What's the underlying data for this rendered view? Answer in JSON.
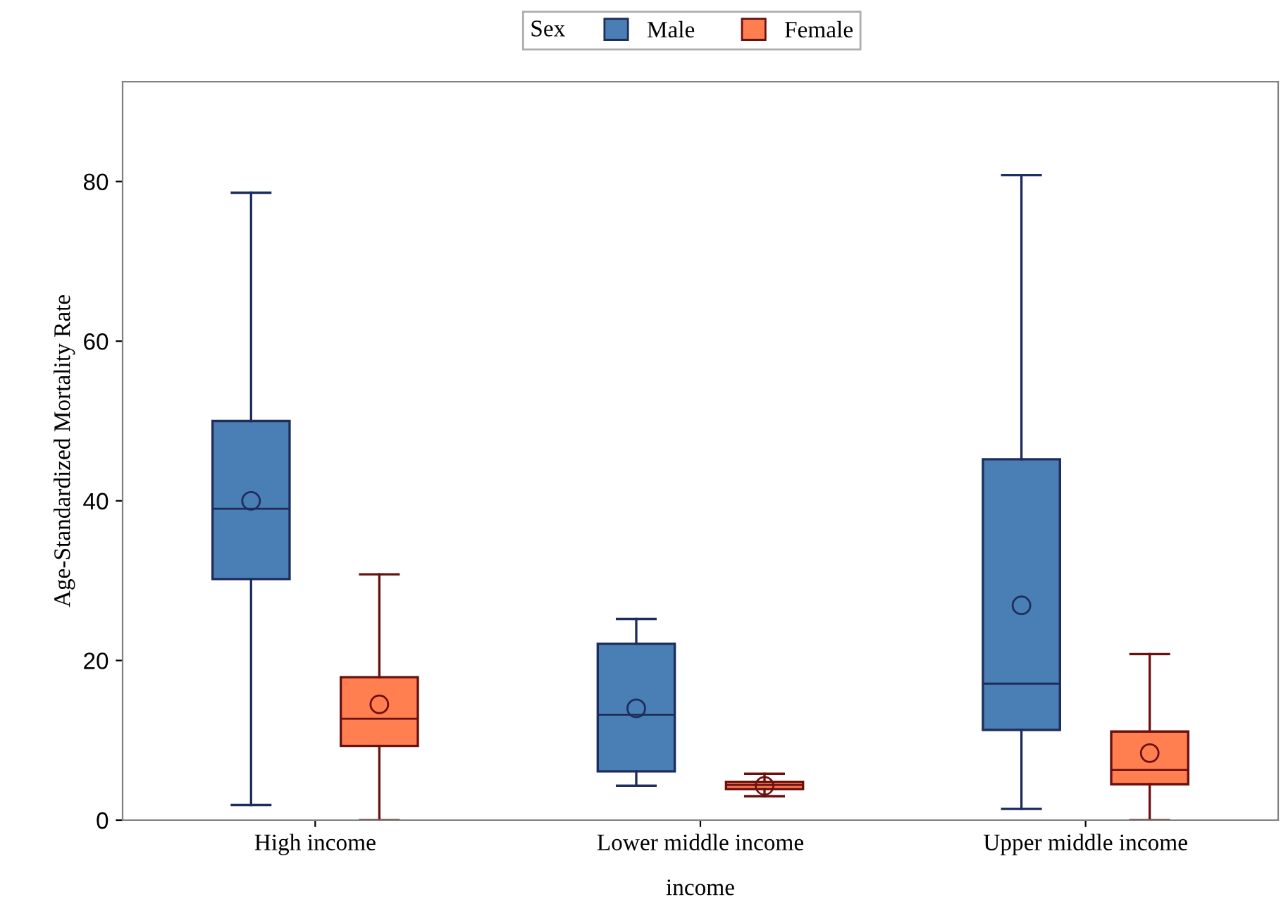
{
  "chart_data": {
    "type": "box",
    "xlabel": "income",
    "ylabel": "Age-Standardized Mortality Rate",
    "legend_title": "Sex",
    "legend": "top",
    "categories": [
      "High income",
      "Lower middle income",
      "Upper middle income"
    ],
    "ylim": [
      0,
      92.5
    ],
    "yticks": [
      0,
      20,
      40,
      60,
      80
    ],
    "grid": false,
    "series": [
      {
        "name": "Male",
        "color": "#4a7fb5",
        "boxes": [
          {
            "low": 1.9,
            "q1": 30.2,
            "median": 39.0,
            "q3": 50.0,
            "high": 78.6,
            "mean": 40.0
          },
          {
            "low": 4.3,
            "q1": 6.1,
            "median": 13.2,
            "q3": 22.1,
            "high": 25.2,
            "mean": 14.0
          },
          {
            "low": 1.4,
            "q1": 11.3,
            "median": 17.1,
            "q3": 45.2,
            "high": 80.8,
            "mean": 26.9
          }
        ]
      },
      {
        "name": "Female",
        "color": "#ff7f50",
        "boxes": [
          {
            "low": 0,
            "q1": 9.3,
            "median": 12.7,
            "q3": 17.9,
            "high": 30.8,
            "mean": 14.5
          },
          {
            "low": 3.0,
            "q1": 3.9,
            "median": 4.4,
            "q3": 4.8,
            "high": 5.8,
            "mean": 4.3
          },
          {
            "low": 0,
            "q1": 4.5,
            "median": 6.3,
            "q3": 11.1,
            "high": 20.8,
            "mean": 8.4
          }
        ]
      }
    ]
  }
}
